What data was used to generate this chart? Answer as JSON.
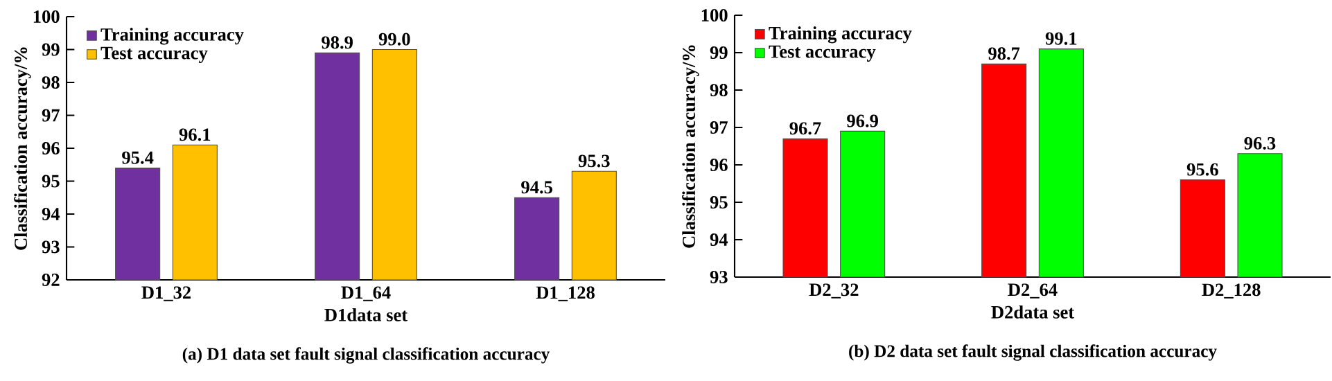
{
  "chart_data": [
    {
      "type": "bar",
      "title": "(a) D1 data set fault signal classification accuracy",
      "xlabel": "D1data set",
      "ylabel": "Classification accuracy/%",
      "categories": [
        "D1_32",
        "D1_64",
        "D1_128"
      ],
      "series": [
        {
          "name": "Training accuracy",
          "color": "#7030a0",
          "values": [
            95.4,
            98.9,
            94.5
          ],
          "value_labels": [
            "95.4",
            "98.9",
            "94.5"
          ]
        },
        {
          "name": "Test accuracy",
          "color": "#ffc000",
          "values": [
            96.1,
            99.0,
            95.3
          ],
          "value_labels": [
            "96.1",
            "99.0",
            "95.3"
          ]
        }
      ],
      "ylim": [
        92,
        100
      ],
      "yticks": [
        92,
        93,
        94,
        95,
        96,
        97,
        98,
        99,
        100
      ],
      "legend": "top left",
      "grid": false
    },
    {
      "type": "bar",
      "title": "(b) D2 data set fault signal classification accuracy",
      "xlabel": "D2data set",
      "ylabel": "Classification accuracy/%",
      "categories": [
        "D2_32",
        "D2_64",
        "D2_128"
      ],
      "series": [
        {
          "name": "Training accuracy",
          "color": "#ff0000",
          "values": [
            96.7,
            98.7,
            95.6
          ],
          "value_labels": [
            "96.7",
            "98.7",
            "95.6"
          ]
        },
        {
          "name": "Test accuracy",
          "color": "#00ff00",
          "values": [
            96.9,
            99.1,
            96.3
          ],
          "value_labels": [
            "96.9",
            "99.1",
            "96.3"
          ]
        }
      ],
      "ylim": [
        93,
        100
      ],
      "yticks": [
        93,
        94,
        95,
        96,
        97,
        98,
        99,
        100
      ],
      "legend": "top left",
      "grid": false
    }
  ]
}
